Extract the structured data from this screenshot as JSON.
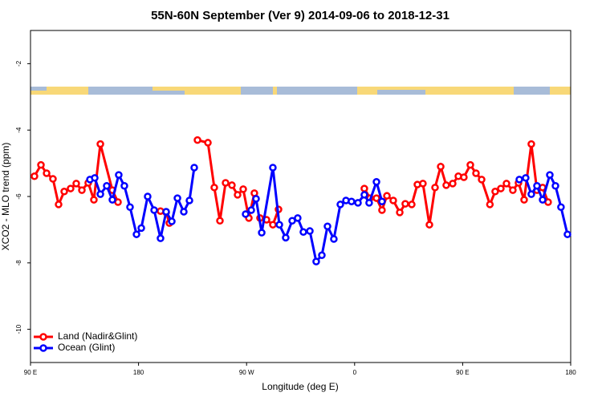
{
  "chart_data": {
    "type": "line",
    "title": "55N-60N September (Ver 9)   2014-09-06 to 2018-12-31",
    "x_label": "Longitude (deg E)",
    "y_label": "XCO2 - MLO trend (ppm)",
    "xlim": [
      90,
      540
    ],
    "ylim": [
      -11,
      -1
    ],
    "xticks": [
      {
        "value": 90,
        "label": "90 E"
      },
      180,
      {
        "value": 270,
        "label": "90 W"
      },
      {
        "value": 360,
        "label": "0"
      },
      {
        "value": 450,
        "label": "90 E"
      },
      {
        "value": 540,
        "label": "180"
      }
    ],
    "yticks": [
      -2,
      -4,
      -6,
      -8,
      -10
    ],
    "legend": "bottom-left",
    "series": [
      {
        "name": "Land (Nadir&Glint)",
        "color": "#ff0000",
        "x": [
          93.3,
          98.7,
          103.4,
          108.7,
          113.4,
          118.1,
          123.4,
          128.1,
          132.8,
          138.1,
          142.8,
          148.2,
          158.2,
          162.9,
          null,
          198.3,
          203.0,
          205.7,
          null,
          229.1,
          237.8,
          243.1,
          247.8,
          252.5,
          257.8,
          262.5,
          267.2,
          271.9,
          276.5,
          null,
          281.2,
          286.6,
          291.9,
          296.6,
          null,
          368.1,
          372.8,
          378.2,
          382.8,
          386.9,
          392.2,
          397.6,
          402.2,
          407.6,
          412.3,
          416.9,
          422.3,
          427.0,
          431.7,
          436.3,
          441.7,
          446.4,
          451.0,
          456.4,
          461.1,
          465.8,
          472.7,
          477.1,
          481.8,
          486.5,
          491.8,
          496.5,
          501.2,
          507.2,
          511.9,
          516.6,
          521.2
        ],
        "values": [
          -5.39,
          -5.05,
          -5.3,
          -5.47,
          -6.24,
          -5.85,
          -5.76,
          -5.61,
          -5.81,
          -5.59,
          -6.1,
          -4.42,
          -5.81,
          -6.17,
          null,
          -6.44,
          -6.48,
          -6.8,
          null,
          -4.3,
          -4.38,
          -5.73,
          -6.73,
          -5.59,
          -5.66,
          -5.95,
          -5.78,
          -6.65,
          -5.9,
          null,
          -6.65,
          -6.7,
          -6.85,
          -6.39,
          null,
          -5.76,
          -6.05,
          -6.05,
          -6.41,
          -5.98,
          -6.12,
          -6.48,
          -6.22,
          -6.24,
          -5.64,
          -5.61,
          -6.85,
          -5.73,
          -5.1,
          -5.66,
          -5.61,
          -5.39,
          -5.42,
          -5.05,
          -5.3,
          -5.49,
          -6.24,
          -5.85,
          -5.76,
          -5.61,
          -5.81,
          -5.59,
          -6.1,
          -4.42,
          -5.81,
          -5.73,
          -6.17
        ]
      },
      {
        "name": "Ocean (Glint)",
        "color": "#0000ff",
        "x": [
          139.5,
          143.5,
          148.2,
          153.5,
          158.2,
          163.5,
          168.2,
          172.9,
          178.3,
          182.3,
          187.6,
          193.0,
          198.3,
          203.0,
          207.7,
          212.4,
          217.7,
          222.4,
          226.4,
          null,
          269.2,
          273.9,
          277.9,
          282.6,
          291.9,
          297.3,
          302.6,
          308.0,
          312.6,
          317.3,
          322.7,
          328.0,
          332.7,
          337.4,
          342.7,
          348.1,
          352.8,
          357.4,
          362.8,
          368.1,
          372.1,
          378.2,
          382.8,
          null,
          497.2,
          502.5,
          507.2,
          511.9,
          516.6,
          522.6,
          527.3,
          531.9,
          537.3
        ],
        "values": [
          -5.49,
          -5.44,
          -5.93,
          -5.68,
          -6.1,
          -5.35,
          -5.68,
          -6.32,
          -7.14,
          -6.95,
          -6.0,
          -6.41,
          -7.26,
          -6.46,
          -6.75,
          -6.05,
          -6.46,
          -6.12,
          -5.13,
          null,
          -6.53,
          -6.41,
          -6.07,
          -7.09,
          -5.13,
          -6.85,
          -7.24,
          -6.73,
          -6.65,
          -7.07,
          -7.04,
          -7.96,
          -7.77,
          -6.9,
          -7.28,
          -6.24,
          -6.12,
          -6.15,
          -6.19,
          -5.95,
          -6.19,
          -5.56,
          -6.15,
          null,
          -5.49,
          -5.44,
          -5.93,
          -5.68,
          -6.1,
          -5.35,
          -5.68,
          -6.32,
          -7.14
        ]
      }
    ]
  }
}
